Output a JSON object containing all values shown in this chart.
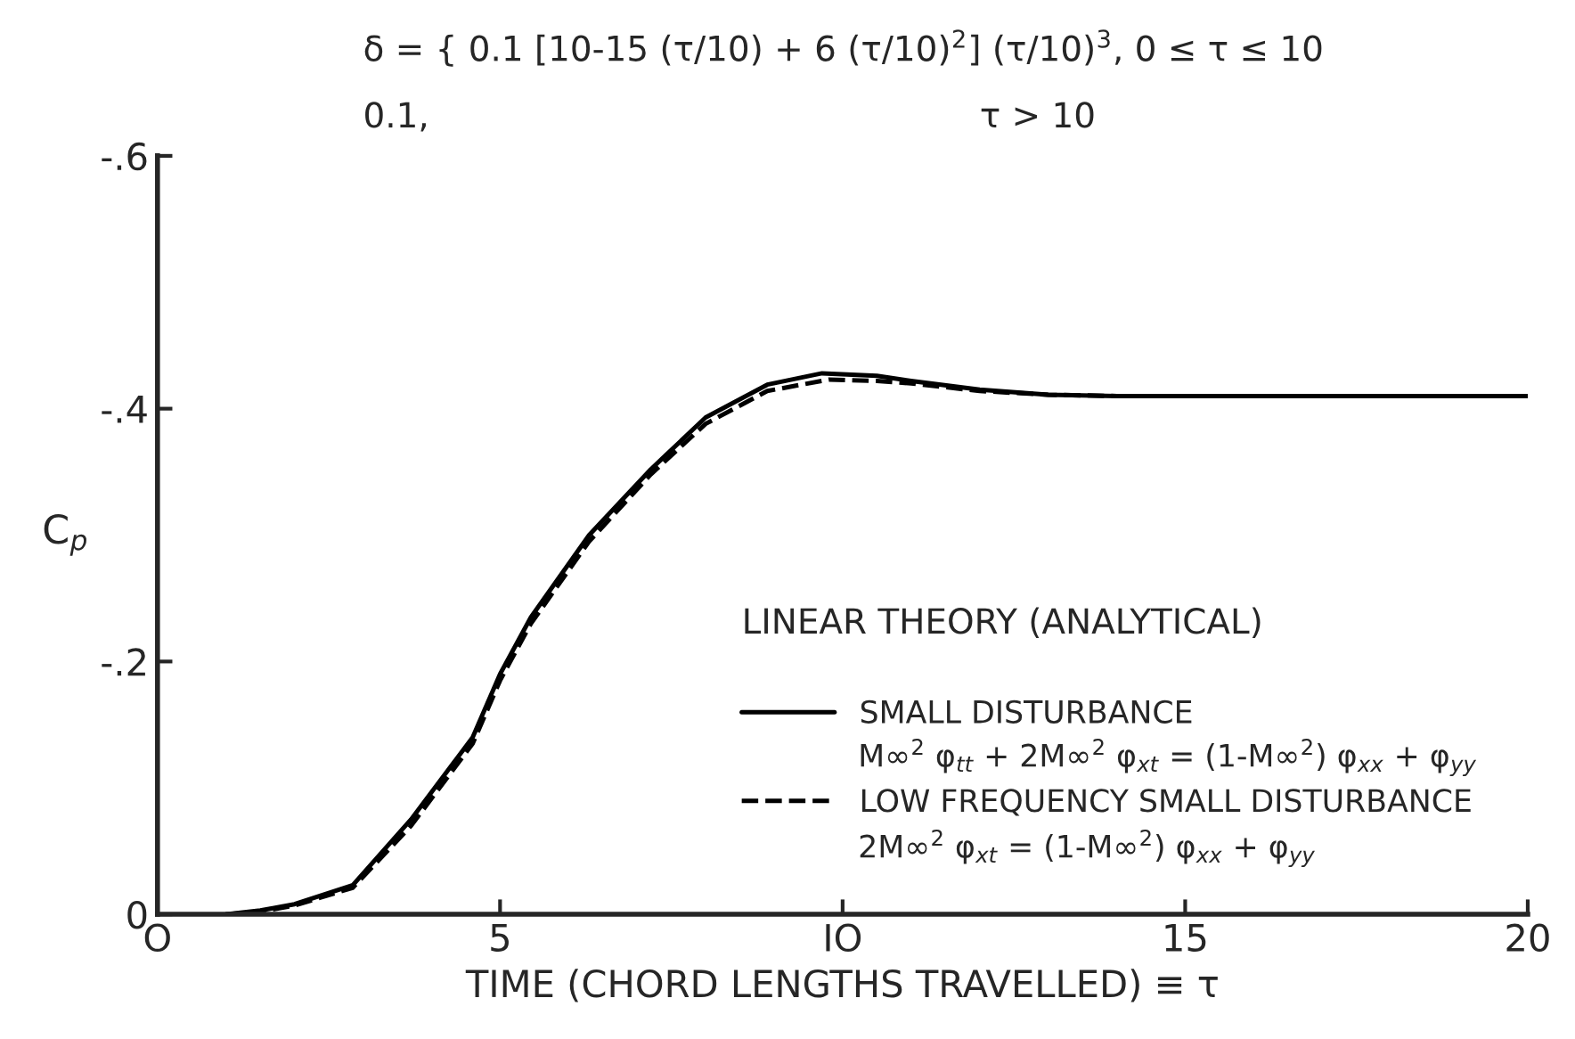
{
  "chart_data": {
    "type": "line",
    "xlabel": "TIME (CHORD LENGTHS TRAVELLED) ≡ τ",
    "ylabel": "C$_{p}$",
    "legend_title": "LINEAR THEORY (ANALYTICAL)",
    "annotations": [
      "δ = { 0.1 [10-15 (τ/10) + 6 (τ/10)$^{2}$] (τ/10)$^{3}$, 0 ≤ τ ≤ 10",
      "0.1,                                                  τ > 10",
      "M∞$^{2}$ φ$_{tt}$ + 2M∞$^{2}$ φ$_{xt}$ = (1-M∞$^{2}$) φ$_{xx}$ + φ$_{yy}$",
      "2M∞$^{2}$ φ$_{xt}$ = (1-M∞$^{2}$) φ$_{xx}$ + φ$_{yy}$"
    ],
    "xlim": [
      0,
      20
    ],
    "xticks": [
      {
        "value": 0,
        "label": "O"
      },
      5,
      {
        "value": 10,
        "label": "IO"
      },
      15,
      20
    ],
    "ylim": [
      0,
      -0.6
    ],
    "yticks": [
      {
        "value": 0,
        "label": "0"
      },
      {
        "value": -0.2,
        "label": "-.2"
      },
      {
        "value": -0.4,
        "label": "-.4"
      },
      {
        "value": -0.6,
        "label": "-.6"
      }
    ],
    "grid": false,
    "legend": "bottom right",
    "marker": "none",
    "series": [
      {
        "name": "SMALL DISTURBANCE",
        "color": "#000000",
        "line_style": "solid",
        "x": [
          1.0,
          1.5,
          2.0,
          2.85,
          3.7,
          4.6,
          5.0,
          5.45,
          6.3,
          7.2,
          8.0,
          8.9,
          9.7,
          10.5,
          11.0,
          12.0,
          13.0,
          14.0,
          16.0,
          18.0,
          20.0
        ],
        "values": [
          0,
          -0.003,
          -0.008,
          -0.023,
          -0.075,
          -0.14,
          -0.19,
          -0.235,
          -0.3,
          -0.352,
          -0.393,
          -0.419,
          -0.428,
          -0.426,
          -0.422,
          -0.415,
          -0.411,
          -0.41,
          -0.41,
          -0.41,
          -0.41
        ]
      },
      {
        "name": "LOW FREQUENCY SMALL DISTURBANCE",
        "color": "#000000",
        "line_style": "dashed",
        "x": [
          1.0,
          1.5,
          2.0,
          2.85,
          3.7,
          4.6,
          5.0,
          5.45,
          6.3,
          7.2,
          8.0,
          8.9,
          9.8,
          10.5,
          11.0,
          12.0,
          13.0,
          14.0,
          16.0,
          18.0,
          20.0
        ],
        "values": [
          0,
          -0.002,
          -0.007,
          -0.021,
          -0.07,
          -0.135,
          -0.185,
          -0.23,
          -0.295,
          -0.348,
          -0.388,
          -0.414,
          -0.423,
          -0.422,
          -0.42,
          -0.414,
          -0.411,
          -0.41,
          -0.41,
          -0.41,
          -0.41
        ]
      }
    ]
  }
}
